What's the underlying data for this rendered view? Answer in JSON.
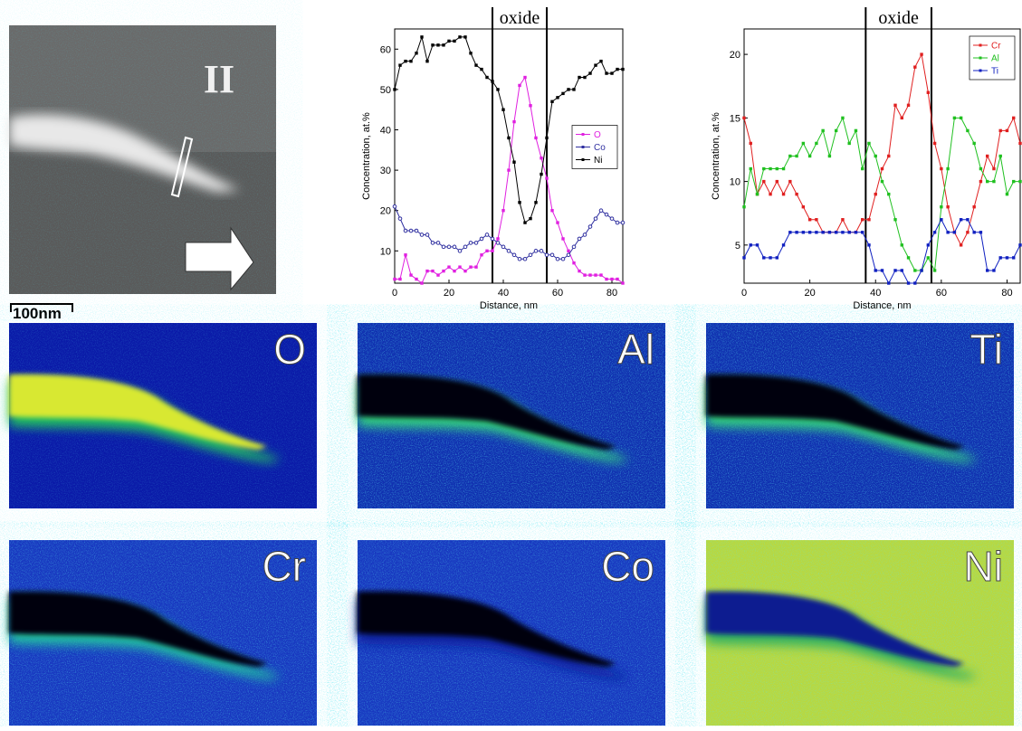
{
  "chart_data": [
    {
      "type": "line",
      "xlabel": "Distance, nm",
      "ylabel": "Concentration, at.%",
      "xlim": [
        0,
        84
      ],
      "ylim": [
        2,
        65
      ],
      "xticks": [
        0,
        20,
        40,
        60,
        80
      ],
      "yticks": [
        10,
        20,
        30,
        40,
        50,
        60
      ],
      "legend": "center right",
      "annotation": {
        "label": "oxide",
        "x": [
          36,
          56
        ]
      },
      "x": [
        0,
        2,
        4,
        6,
        8,
        10,
        12,
        14,
        16,
        18,
        20,
        22,
        24,
        26,
        28,
        30,
        32,
        34,
        36,
        38,
        40,
        42,
        44,
        46,
        48,
        50,
        52,
        54,
        56,
        58,
        60,
        62,
        64,
        66,
        68,
        70,
        72,
        74,
        76,
        78,
        80,
        82,
        84
      ],
      "series": [
        {
          "name": "O",
          "color": "#e020e0",
          "values": [
            3,
            3,
            9,
            4,
            3,
            2,
            5,
            5,
            4,
            5,
            6,
            5,
            6,
            5,
            6,
            6,
            9,
            10,
            10,
            13,
            20,
            30,
            42,
            51,
            53,
            46,
            38,
            33,
            28,
            20,
            17,
            13,
            10,
            7,
            5,
            4,
            4,
            4,
            4,
            3,
            3,
            3,
            2
          ]
        },
        {
          "name": "Co",
          "color": "#3030a0",
          "values": [
            21,
            18,
            15,
            15,
            15,
            14,
            14,
            12,
            12,
            11,
            11,
            11,
            10,
            11,
            12,
            12,
            13,
            14,
            13,
            12,
            11,
            10,
            9,
            8,
            8,
            9,
            10,
            10,
            9,
            9,
            8,
            8,
            9,
            11,
            13,
            14,
            16,
            18,
            20,
            19,
            18,
            17,
            17
          ]
        },
        {
          "name": "Ni",
          "color": "#000000",
          "values": [
            50,
            56,
            57,
            57,
            59,
            63,
            57,
            61,
            61,
            61,
            62,
            62,
            63,
            63,
            59,
            56,
            55,
            53,
            52,
            50,
            45,
            38,
            32,
            22,
            17,
            18,
            22,
            29,
            38,
            47,
            48,
            49,
            50,
            50,
            53,
            53,
            54,
            56,
            57,
            54,
            54,
            55,
            55
          ]
        }
      ]
    },
    {
      "type": "line",
      "xlabel": "Distance, nm",
      "ylabel": "Concentration, at.%",
      "xlim": [
        0,
        84
      ],
      "ylim": [
        2,
        22
      ],
      "xticks": [
        0,
        20,
        40,
        60,
        80
      ],
      "yticks": [
        5,
        10,
        15,
        20
      ],
      "legend": "top right",
      "annotation": {
        "label": "oxide",
        "x": [
          37,
          57
        ]
      },
      "x": [
        0,
        2,
        4,
        6,
        8,
        10,
        12,
        14,
        16,
        18,
        20,
        22,
        24,
        26,
        28,
        30,
        32,
        34,
        36,
        38,
        40,
        42,
        44,
        46,
        48,
        50,
        52,
        54,
        56,
        58,
        60,
        62,
        64,
        66,
        68,
        70,
        72,
        74,
        76,
        78,
        80,
        82,
        84
      ],
      "series": [
        {
          "name": "Cr",
          "color": "#e02020",
          "values": [
            15,
            13,
            9,
            10,
            9,
            10,
            9,
            10,
            9,
            8,
            7,
            7,
            6,
            6,
            6,
            7,
            6,
            6,
            7,
            7,
            9,
            11,
            12,
            16,
            15,
            16,
            19,
            20,
            17,
            13,
            11,
            8,
            6,
            5,
            6,
            8,
            10,
            12,
            11,
            14,
            14,
            15,
            13
          ]
        },
        {
          "name": "Al",
          "color": "#20c020",
          "values": [
            8,
            11,
            9,
            11,
            11,
            11,
            11,
            12,
            12,
            13,
            12,
            13,
            14,
            12,
            14,
            15,
            13,
            14,
            11,
            13,
            12,
            10,
            9,
            7,
            5,
            4,
            3,
            3,
            4,
            3,
            8,
            11,
            15,
            15,
            14,
            13,
            11,
            10,
            10,
            12,
            9,
            10,
            10
          ]
        },
        {
          "name": "Ti",
          "color": "#1020c0",
          "values": [
            4,
            5,
            5,
            4,
            4,
            4,
            5,
            6,
            6,
            6,
            6,
            6,
            6,
            6,
            6,
            6,
            6,
            6,
            6,
            5,
            3,
            3,
            2,
            3,
            3,
            2,
            2,
            3,
            5,
            6,
            7,
            6,
            6,
            7,
            7,
            6,
            6,
            3,
            3,
            4,
            4,
            4,
            5
          ]
        }
      ]
    }
  ],
  "micrograph": {
    "label": "II",
    "scale_bar": "100nm"
  },
  "maps": [
    {
      "label": "O"
    },
    {
      "label": "Al"
    },
    {
      "label": "Ti"
    },
    {
      "label": "Cr"
    },
    {
      "label": "Co"
    },
    {
      "label": "Ni"
    }
  ]
}
